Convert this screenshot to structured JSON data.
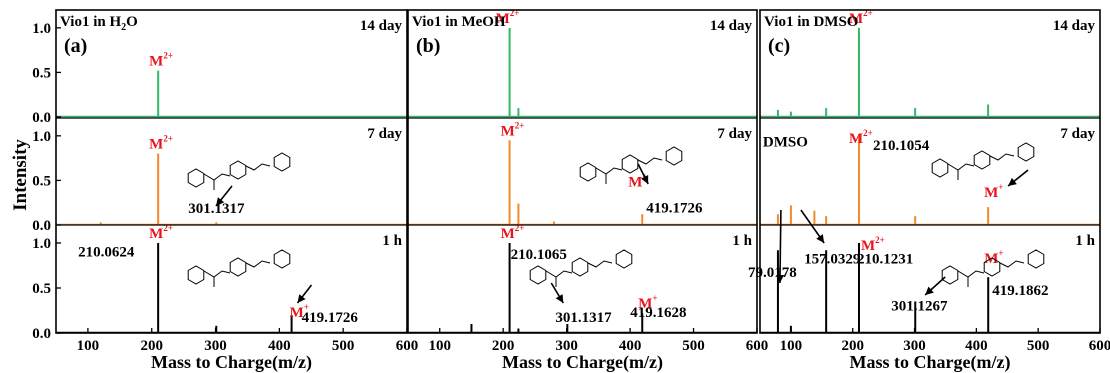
{
  "figure": {
    "ylabel": "Intensity",
    "xlabel": "Mass to Charge(m/z)",
    "x_ticks": [
      "100",
      "200",
      "300",
      "400",
      "500",
      "600"
    ],
    "y_ticks": [
      "0.0",
      "0.5",
      "1.0"
    ],
    "colors": {
      "14 day": "#33b86a",
      "7 day": "#f28a28",
      "1 h": "#000000",
      "ion_label": "#e8141c",
      "axes": "#000000"
    }
  },
  "chart_data": [
    {
      "type": "line",
      "panel_label": "(a)",
      "title": "Vio1 in H2O",
      "title_main": "Vio1 in H",
      "title_sub": "2",
      "title_end": "O",
      "xlabel": "Mass to Charge(m/z)",
      "ylabel": "Intensity",
      "xlim": [
        50,
        600
      ],
      "ylim": [
        0,
        1.2
      ],
      "x_ticks": [
        100,
        200,
        300,
        400,
        500,
        600
      ],
      "y_ticks": [
        0.0,
        0.5,
        1.0
      ],
      "series": [
        {
          "name": "14 day",
          "color": "#33b86a",
          "peaks": [
            [
              210.1,
              0.52
            ]
          ],
          "annotations": [
            {
              "mz": 210.1,
              "label": "M",
              "sup": "2+",
              "color": "#e8141c"
            }
          ]
        },
        {
          "name": "7 day",
          "color": "#f28a28",
          "peaks": [
            [
              210.1,
              0.8
            ],
            [
              120,
              0.03
            ],
            [
              301.1,
              0.03
            ]
          ],
          "annotations": [
            {
              "mz": 210.1,
              "label": "M",
              "sup": "2+",
              "color": "#e8141c"
            },
            {
              "mz": 301.1,
              "label": "301.1317",
              "color": "#000000"
            }
          ]
        },
        {
          "name": "1 h",
          "color": "#000000",
          "peaks": [
            [
              210.06,
              1.0
            ],
            [
              301.1,
              0.08
            ],
            [
              419.17,
              0.2
            ]
          ],
          "annotations": [
            {
              "mz": 210.06,
              "label": "M",
              "sup": "2+",
              "color": "#e8141c"
            },
            {
              "mz": 210.06,
              "label": "210.0624",
              "color": "#000000"
            },
            {
              "mz": 419.17,
              "label": "M",
              "sup": "+",
              "color": "#e8141c"
            },
            {
              "mz": 419.17,
              "label": "419.1726",
              "color": "#000000"
            }
          ]
        }
      ]
    },
    {
      "type": "line",
      "panel_label": "(b)",
      "title": "Vio1 in MeOH",
      "title_main": "Vio1 in MeOH",
      "title_sub": "",
      "title_end": "",
      "xlabel": "Mass to Charge(m/z)",
      "xlim": [
        50,
        600
      ],
      "ylim": [
        0,
        1.2
      ],
      "x_ticks": [
        100,
        200,
        300,
        400,
        500,
        600
      ],
      "series": [
        {
          "name": "14 day",
          "color": "#33b86a",
          "peaks": [
            [
              210.1,
              1.0
            ],
            [
              224,
              0.1
            ]
          ],
          "annotations": [
            {
              "mz": 210.1,
              "label": "M",
              "sup": "2+",
              "color": "#e8141c"
            }
          ]
        },
        {
          "name": "7 day",
          "color": "#f28a28",
          "peaks": [
            [
              210.1,
              0.95
            ],
            [
              224,
              0.24
            ],
            [
              280,
              0.04
            ],
            [
              419.17,
              0.12
            ]
          ],
          "annotations": [
            {
              "mz": 210.1,
              "label": "M",
              "sup": "2+",
              "color": "#e8141c"
            },
            {
              "mz": 419.17,
              "label": "M",
              "sup": "+",
              "color": "#e8141c"
            },
            {
              "mz": 419.17,
              "label": "419.1726",
              "color": "#000000"
            }
          ]
        },
        {
          "name": "1 h",
          "color": "#000000",
          "peaks": [
            [
              150,
              0.1
            ],
            [
              210.1,
              1.0
            ],
            [
              224,
              0.05
            ],
            [
              301.1,
              0.1
            ],
            [
              419.16,
              0.22
            ]
          ],
          "annotations": [
            {
              "mz": 210.1,
              "label": "M",
              "sup": "2+",
              "color": "#e8141c"
            },
            {
              "mz": 210.1,
              "label": "210.1065",
              "color": "#000000"
            },
            {
              "mz": 301.1,
              "label": "301.1317",
              "color": "#000000"
            },
            {
              "mz": 419.16,
              "label": "M",
              "sup": "+",
              "color": "#e8141c"
            },
            {
              "mz": 419.16,
              "label": "419.1628",
              "color": "#000000"
            }
          ]
        }
      ]
    },
    {
      "type": "line",
      "panel_label": "(c)",
      "title": "Vio1 in DMSO",
      "title_main": "Vio1 in DMSO",
      "title_sub": "",
      "title_end": "",
      "xlabel": "Mass to Charge(m/z)",
      "xlim": [
        50,
        600
      ],
      "ylim": [
        0,
        1.2
      ],
      "x_ticks": [
        100,
        200,
        300,
        400,
        500,
        600
      ],
      "series": [
        {
          "name": "14 day",
          "color": "#33b86a",
          "peaks": [
            [
              79,
              0.08
            ],
            [
              100,
              0.06
            ],
            [
              157,
              0.1
            ],
            [
              210.1,
              1.0
            ],
            [
              301,
              0.1
            ],
            [
              419,
              0.14
            ]
          ],
          "annotations": [
            {
              "mz": 210.1,
              "label": "M",
              "sup": "2+",
              "color": "#e8141c"
            }
          ]
        },
        {
          "name": "7 day",
          "color": "#f28a28",
          "peaks": [
            [
              79,
              0.12
            ],
            [
              100,
              0.22
            ],
            [
              138,
              0.16
            ],
            [
              157,
              0.1
            ],
            [
              210.1,
              1.0
            ],
            [
              301,
              0.1
            ],
            [
              419,
              0.2
            ]
          ],
          "annotations": [
            {
              "mz": 210.1,
              "label": "M",
              "sup": "2+",
              "color": "#e8141c"
            },
            {
              "mz": 210.1,
              "label": "210.1054",
              "color": "#000000"
            },
            {
              "mz": 100,
              "label": "DMSO",
              "color": "#000000"
            },
            {
              "mz": 419,
              "label": "M",
              "sup": "+",
              "color": "#e8141c"
            }
          ]
        },
        {
          "name": "1 h",
          "color": "#000000",
          "peaks": [
            [
              79.02,
              0.92
            ],
            [
              100,
              0.08
            ],
            [
              157.03,
              0.92
            ],
            [
              210.12,
              1.0
            ],
            [
              301.13,
              0.35
            ],
            [
              419.19,
              0.62
            ]
          ],
          "annotations": [
            {
              "mz": 79.02,
              "label": "79.0178",
              "color": "#000000"
            },
            {
              "mz": 157.03,
              "label": "157.0329",
              "color": "#000000"
            },
            {
              "mz": 210.12,
              "label": "M",
              "sup": "2+",
              "color": "#e8141c"
            },
            {
              "mz": 210.12,
              "label": "210.1231",
              "color": "#000000"
            },
            {
              "mz": 301.13,
              "label": "301.1267",
              "color": "#000000"
            },
            {
              "mz": 419.19,
              "label": "M",
              "sup": "+",
              "color": "#e8141c"
            },
            {
              "mz": 419.19,
              "label": "419.1862",
              "color": "#000000"
            }
          ]
        }
      ]
    }
  ]
}
